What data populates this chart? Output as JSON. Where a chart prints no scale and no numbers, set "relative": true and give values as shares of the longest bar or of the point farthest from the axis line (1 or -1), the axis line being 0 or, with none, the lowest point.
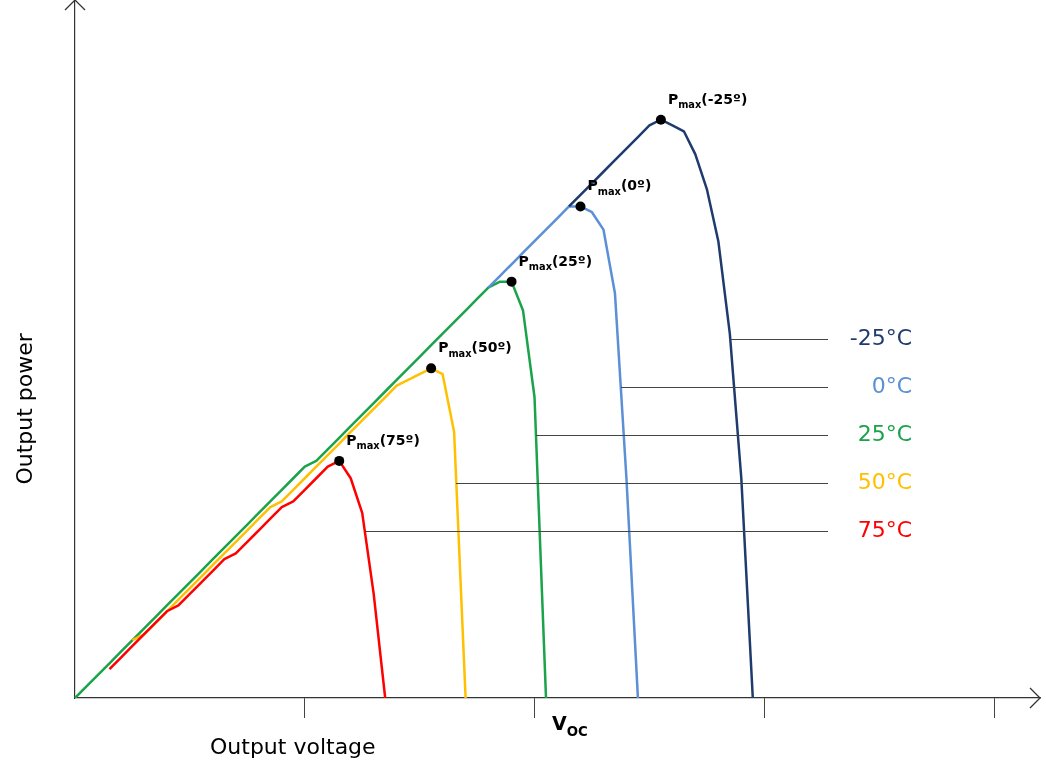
{
  "chart_data": {
    "type": "line",
    "relative": true,
    "xlabel": "Output voltage",
    "ylabel": "Output power",
    "line_style": "solid",
    "categories": [
      null,
      null,
      null,
      null,
      null,
      null,
      null,
      null,
      null,
      null,
      null,
      null,
      null,
      null,
      null,
      null,
      null,
      null,
      null,
      null,
      null,
      null,
      null,
      null,
      null,
      null,
      null,
      null,
      null,
      null,
      null,
      null,
      null,
      null,
      null,
      null,
      null,
      null,
      null,
      null,
      null,
      null,
      null,
      null,
      null,
      null,
      null,
      null,
      null,
      null,
      null,
      null,
      null,
      null,
      null,
      null,
      null,
      null,
      null,
      null,
      null,
      null,
      null,
      null,
      null,
      null,
      null,
      null,
      null,
      null,
      null,
      null,
      null,
      null,
      null,
      null,
      null,
      null,
      null,
      null,
      null,
      null,
      null,
      null,
      null
    ],
    "series": [
      {
        "name": "-25°C",
        "color": "#1f3b6e",
        "values": [
          null,
          null,
          null,
          null,
          null,
          null,
          null,
          null,
          null,
          null,
          null,
          null,
          null,
          null,
          null,
          null,
          null,
          null,
          null,
          null,
          null,
          null,
          null,
          null,
          null,
          null,
          null,
          null,
          null,
          null,
          null,
          null,
          null,
          null,
          null,
          null,
          null,
          null,
          null,
          null,
          null,
          null,
          null,
          0.85,
          0.87,
          0.89,
          0.91,
          0.93,
          0.95,
          0.97,
          0.99,
          1,
          0.99,
          0.98,
          0.94,
          0.88,
          0.79,
          0.63,
          0.38,
          0,
          null,
          null,
          null,
          null,
          null,
          null,
          null,
          null,
          null,
          null,
          null,
          null,
          null,
          null,
          null,
          null,
          null,
          null,
          null,
          null,
          null,
          null,
          null,
          null,
          null
        ]
      },
      {
        "name": "0°C",
        "color": "#5b8fd6",
        "values": [
          null,
          null,
          null,
          null,
          null,
          null,
          null,
          null,
          null,
          null,
          null,
          null,
          null,
          null,
          null,
          null,
          null,
          null,
          null,
          null,
          null,
          null,
          null,
          null,
          null,
          null,
          null,
          null,
          null,
          null,
          null,
          null,
          null,
          null,
          null,
          null,
          0.71,
          0.73,
          0.75,
          0.77,
          0.79,
          0.81,
          0.83,
          0.85,
          0.85,
          0.84,
          0.81,
          0.7,
          0.38,
          0,
          null,
          null,
          null,
          null,
          null,
          null,
          null,
          null,
          null,
          null,
          null,
          null,
          null,
          null,
          null,
          null,
          null,
          null,
          null,
          null,
          null,
          null,
          null,
          null,
          null,
          null,
          null,
          null,
          null,
          null,
          null,
          null,
          null,
          null,
          null
        ]
      },
      {
        "name": "75°C",
        "color": "#ff0000",
        "values": [
          null,
          null,
          null,
          0.05,
          0.07,
          0.09,
          0.11,
          0.13,
          0.15,
          0.16,
          0.18,
          0.2,
          0.22,
          0.24,
          0.25,
          0.27,
          0.29,
          0.31,
          0.33,
          0.34,
          0.36,
          0.38,
          0.4,
          0.41,
          0.38,
          0.32,
          0.18,
          0,
          null,
          null,
          null,
          null,
          null,
          null,
          null,
          null,
          null,
          null,
          null,
          null,
          null,
          null,
          null,
          null,
          null,
          null,
          null,
          null,
          null,
          null,
          null,
          null,
          null,
          null,
          null,
          null,
          null,
          null,
          null,
          null,
          null,
          null,
          null,
          null,
          null,
          null,
          null,
          null,
          null,
          null,
          null,
          null,
          null,
          null,
          null,
          null,
          null,
          null,
          null,
          null,
          null,
          null,
          null,
          null,
          null
        ]
      },
      {
        "name": "50°C",
        "color": "#ffc000",
        "values": [
          null,
          null,
          null,
          null,
          null,
          0.1,
          0.11,
          0.13,
          0.15,
          0.17,
          0.19,
          0.21,
          0.23,
          0.25,
          0.27,
          0.29,
          0.31,
          0.33,
          0.34,
          0.36,
          0.38,
          0.4,
          0.42,
          0.44,
          0.46,
          0.48,
          0.5,
          0.52,
          0.54,
          0.55,
          0.56,
          0.57,
          0.56,
          0.46,
          0,
          null,
          null,
          null,
          null,
          null,
          null,
          null,
          null,
          null,
          null,
          null,
          null,
          null,
          null,
          null,
          null,
          null,
          null,
          null,
          null,
          null,
          null,
          null,
          null,
          null,
          null,
          null,
          null,
          null,
          null,
          null,
          null,
          null,
          null,
          null,
          null,
          null,
          null,
          null,
          null,
          null,
          null,
          null,
          null,
          null,
          null,
          null,
          null,
          null,
          null
        ]
      },
      {
        "name": "25°C",
        "color": "#1aa34a",
        "values": [
          0,
          0.02,
          0.04,
          0.06,
          0.08,
          0.1,
          0.12,
          0.14,
          0.16,
          0.18,
          0.2,
          0.22,
          0.24,
          0.26,
          0.28,
          0.3,
          0.32,
          0.34,
          0.36,
          0.38,
          0.4,
          0.41,
          0.43,
          0.45,
          0.47,
          0.49,
          0.51,
          0.53,
          0.55,
          0.57,
          0.59,
          0.61,
          0.63,
          0.65,
          0.67,
          0.69,
          0.71,
          0.72,
          0.72,
          0.67,
          0.52,
          0,
          null,
          null,
          null,
          null,
          null,
          null,
          null,
          null,
          null,
          null,
          null,
          null,
          null,
          null,
          null,
          null,
          null,
          null,
          null,
          null,
          null,
          null,
          null,
          null,
          null,
          null,
          null,
          null,
          null,
          null,
          null,
          null,
          null,
          null,
          null,
          null,
          null,
          null,
          null,
          null,
          null,
          null,
          null
        ]
      }
    ],
    "annotations": [
      "P$_{max}$(-25º)",
      "P$_{max}$(0º)",
      "P$_{max}$(75º)",
      "P$_{max}$(50º)",
      "P$_{max}$(25º)",
      "V$_{OC}$"
    ]
  }
}
